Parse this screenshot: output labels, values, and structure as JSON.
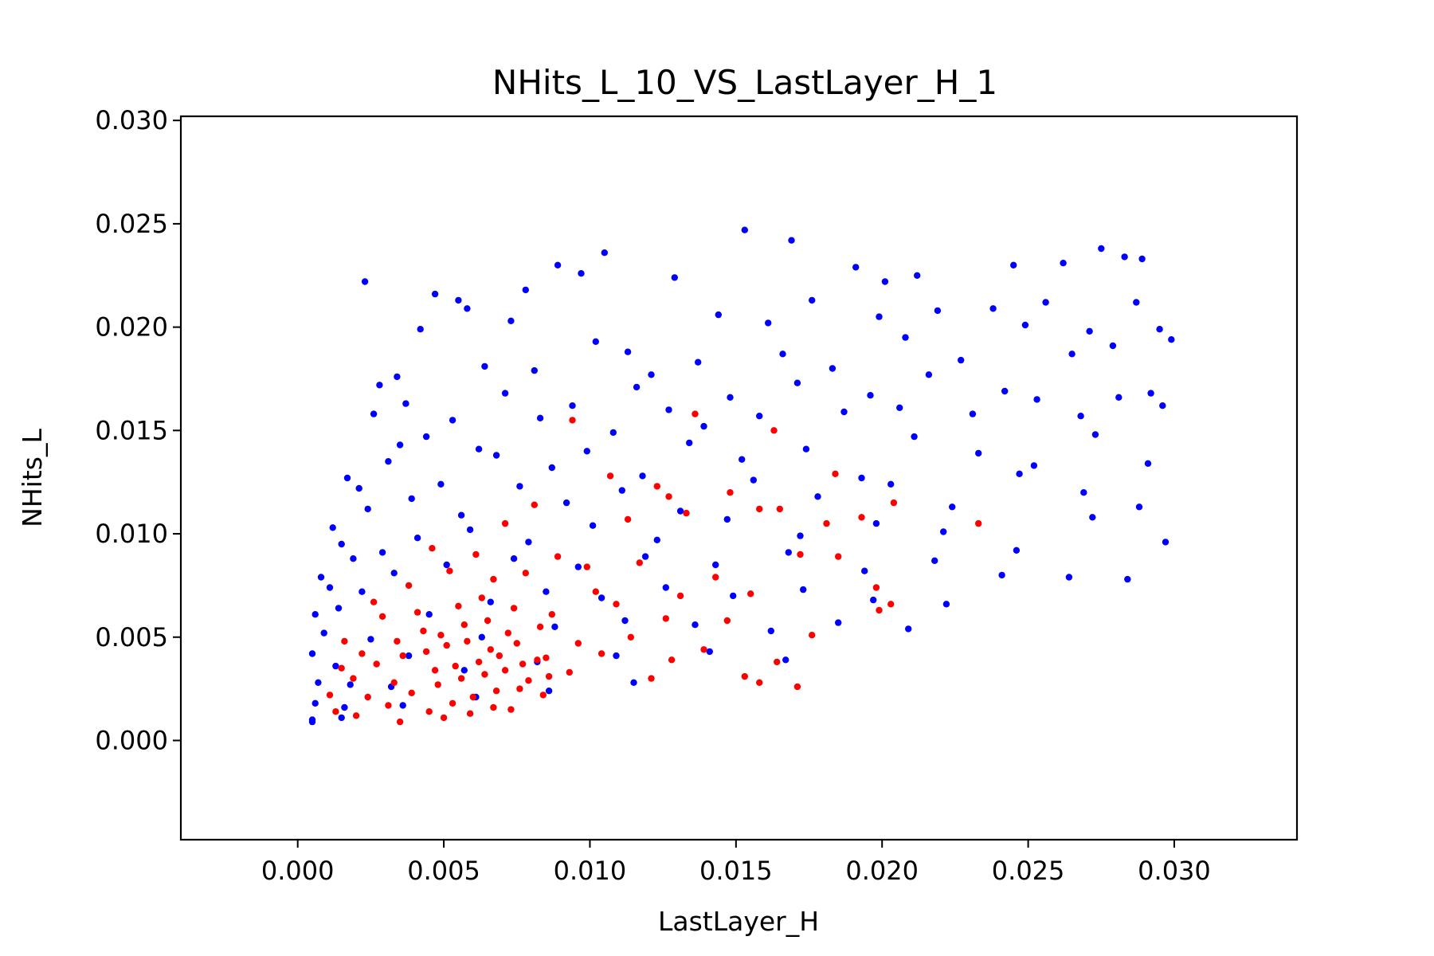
{
  "chart_data": {
    "type": "scatter",
    "title": "NHits_L_10_VS_LastLayer_H_1",
    "xlabel": "LastLayer_H",
    "ylabel": "NHits_L",
    "xlim": [
      -0.004,
      0.0342
    ],
    "ylim": [
      -0.0048,
      0.0302
    ],
    "x_ticks": [
      "0.000",
      "0.005",
      "0.010",
      "0.015",
      "0.020",
      "0.025",
      "0.030"
    ],
    "y_ticks": [
      "0.000",
      "0.005",
      "0.010",
      "0.015",
      "0.020",
      "0.025",
      "0.030"
    ],
    "grid": false,
    "legend": "none",
    "colors": {
      "series_1": "#0000ff",
      "series_2": "#ff0000"
    },
    "series": [
      {
        "color": "#0000ff",
        "x": [
          0.0023,
          0.0047,
          0.0055,
          0.0078,
          0.0089,
          0.0097,
          0.0105,
          0.0129,
          0.0153,
          0.0169,
          0.0191,
          0.0201,
          0.0212,
          0.0245,
          0.0262,
          0.0275,
          0.0283,
          0.0289,
          0.0295,
          0.0299,
          0.0034,
          0.0042,
          0.0058,
          0.0073,
          0.0102,
          0.0113,
          0.0144,
          0.0161,
          0.0176,
          0.0199,
          0.0219,
          0.0238,
          0.0256,
          0.0271,
          0.0287,
          0.0028,
          0.0037,
          0.0064,
          0.0081,
          0.0121,
          0.0137,
          0.0166,
          0.0183,
          0.0208,
          0.0227,
          0.0249,
          0.0265,
          0.0279,
          0.0292,
          0.0017,
          0.0026,
          0.0035,
          0.0044,
          0.0053,
          0.0062,
          0.0071,
          0.0083,
          0.0094,
          0.0108,
          0.0116,
          0.0127,
          0.0139,
          0.0148,
          0.0158,
          0.0171,
          0.0187,
          0.0196,
          0.0206,
          0.0216,
          0.0231,
          0.0242,
          0.0253,
          0.0268,
          0.0281,
          0.0296,
          0.0012,
          0.0021,
          0.0031,
          0.0049,
          0.0068,
          0.0087,
          0.0099,
          0.0118,
          0.0134,
          0.0152,
          0.0174,
          0.0193,
          0.0211,
          0.0233,
          0.0252,
          0.0273,
          0.0291,
          0.0008,
          0.0015,
          0.0024,
          0.0039,
          0.0056,
          0.0076,
          0.0092,
          0.0111,
          0.0131,
          0.0156,
          0.0178,
          0.0203,
          0.0224,
          0.0247,
          0.0269,
          0.0288,
          0.0006,
          0.0011,
          0.0019,
          0.0029,
          0.0041,
          0.0059,
          0.0079,
          0.0101,
          0.0123,
          0.0147,
          0.0172,
          0.0198,
          0.0221,
          0.0246,
          0.0272,
          0.0297,
          0.0005,
          0.0009,
          0.0014,
          0.0022,
          0.0033,
          0.0051,
          0.0074,
          0.0096,
          0.0119,
          0.0143,
          0.0168,
          0.0194,
          0.0218,
          0.0241,
          0.0264,
          0.0284,
          0.0007,
          0.0013,
          0.0025,
          0.0045,
          0.0066,
          0.0085,
          0.0104,
          0.0126,
          0.0149,
          0.0173,
          0.0197,
          0.0222,
          0.0006,
          0.0018,
          0.0038,
          0.0063,
          0.0088,
          0.0112,
          0.0136,
          0.0162,
          0.0185,
          0.0209,
          0.0005,
          0.0016,
          0.0032,
          0.0057,
          0.0082,
          0.0109,
          0.0141,
          0.0167,
          0.0005,
          0.0015,
          0.0036,
          0.0061,
          0.0086,
          0.0115
        ],
        "y": [
          0.0222,
          0.0216,
          0.0213,
          0.0218,
          0.023,
          0.0226,
          0.0236,
          0.0224,
          0.0247,
          0.0242,
          0.0229,
          0.0222,
          0.0225,
          0.023,
          0.0231,
          0.0238,
          0.0234,
          0.0233,
          0.0199,
          0.0194,
          0.0176,
          0.0199,
          0.0209,
          0.0203,
          0.0193,
          0.0188,
          0.0206,
          0.0202,
          0.0213,
          0.0205,
          0.0208,
          0.0209,
          0.0212,
          0.0198,
          0.0212,
          0.0172,
          0.0163,
          0.0181,
          0.0179,
          0.0177,
          0.0183,
          0.0187,
          0.018,
          0.0195,
          0.0184,
          0.0201,
          0.0187,
          0.0191,
          0.0168,
          0.0127,
          0.0158,
          0.0143,
          0.0147,
          0.0155,
          0.0141,
          0.0168,
          0.0156,
          0.0162,
          0.0149,
          0.0171,
          0.016,
          0.0152,
          0.0166,
          0.0157,
          0.0173,
          0.0159,
          0.0167,
          0.0161,
          0.0177,
          0.0158,
          0.0169,
          0.0165,
          0.0157,
          0.0166,
          0.0162,
          0.0103,
          0.0122,
          0.0135,
          0.0124,
          0.0138,
          0.0132,
          0.014,
          0.0128,
          0.0144,
          0.0136,
          0.0141,
          0.0127,
          0.0147,
          0.0139,
          0.0133,
          0.0148,
          0.0134,
          0.0079,
          0.0095,
          0.0112,
          0.0117,
          0.0109,
          0.0123,
          0.0115,
          0.0121,
          0.0111,
          0.0126,
          0.0118,
          0.0124,
          0.0113,
          0.0129,
          0.012,
          0.0113,
          0.0061,
          0.0074,
          0.0088,
          0.0091,
          0.0098,
          0.0102,
          0.0096,
          0.0104,
          0.0097,
          0.0107,
          0.0099,
          0.0105,
          0.0101,
          0.0092,
          0.0108,
          0.0096,
          0.0042,
          0.0052,
          0.0064,
          0.0072,
          0.0081,
          0.0085,
          0.0088,
          0.0084,
          0.0089,
          0.0085,
          0.0091,
          0.0082,
          0.0087,
          0.008,
          0.0079,
          0.0078,
          0.0028,
          0.0036,
          0.0049,
          0.0061,
          0.0067,
          0.0072,
          0.0069,
          0.0074,
          0.007,
          0.0073,
          0.0068,
          0.0066,
          0.0018,
          0.0027,
          0.0041,
          0.005,
          0.0055,
          0.0058,
          0.0056,
          0.0053,
          0.0057,
          0.0054,
          0.001,
          0.0016,
          0.0026,
          0.0034,
          0.0038,
          0.0041,
          0.0043,
          0.0039,
          0.0009,
          0.0011,
          0.0017,
          0.0021,
          0.0024,
          0.0028
        ]
      },
      {
        "color": "#ff0000",
        "x": [
          0.0094,
          0.0136,
          0.0163,
          0.0184,
          0.0107,
          0.0123,
          0.0148,
          0.0158,
          0.0204,
          0.0233,
          0.0113,
          0.0127,
          0.0133,
          0.0165,
          0.0181,
          0.0193,
          0.0081,
          0.0071,
          0.0046,
          0.0061,
          0.0089,
          0.0099,
          0.0117,
          0.0143,
          0.0172,
          0.0185,
          0.0198,
          0.0026,
          0.0038,
          0.0052,
          0.0067,
          0.0078,
          0.0102,
          0.0131,
          0.0155,
          0.0203,
          0.0199,
          0.0016,
          0.0029,
          0.0041,
          0.0055,
          0.0063,
          0.0074,
          0.0087,
          0.0109,
          0.0126,
          0.0147,
          0.0176,
          0.0015,
          0.0022,
          0.0034,
          0.0043,
          0.0049,
          0.0057,
          0.0065,
          0.0072,
          0.0083,
          0.0096,
          0.0114,
          0.0139,
          0.0164,
          0.0011,
          0.0019,
          0.0027,
          0.0036,
          0.0044,
          0.0051,
          0.0058,
          0.0066,
          0.0075,
          0.0085,
          0.0104,
          0.0128,
          0.0153,
          0.0171,
          0.0013,
          0.0024,
          0.0033,
          0.0047,
          0.0054,
          0.0062,
          0.0069,
          0.0077,
          0.0082,
          0.0093,
          0.0121,
          0.0158,
          0.002,
          0.0031,
          0.0039,
          0.0048,
          0.0056,
          0.0064,
          0.0071,
          0.0079,
          0.0086,
          0.0035,
          0.0045,
          0.0053,
          0.006,
          0.0068,
          0.0076,
          0.0084,
          0.005,
          0.0059,
          0.0067,
          0.0073
        ],
        "y": [
          0.0155,
          0.0158,
          0.015,
          0.0129,
          0.0128,
          0.0123,
          0.012,
          0.0112,
          0.0115,
          0.0105,
          0.0107,
          0.0118,
          0.011,
          0.0112,
          0.0105,
          0.0108,
          0.0114,
          0.0105,
          0.0093,
          0.009,
          0.0089,
          0.0084,
          0.0086,
          0.0079,
          0.009,
          0.0089,
          0.0074,
          0.0067,
          0.0075,
          0.0082,
          0.0078,
          0.0081,
          0.0072,
          0.007,
          0.0071,
          0.0066,
          0.0063,
          0.0048,
          0.006,
          0.0062,
          0.0065,
          0.0069,
          0.0064,
          0.0061,
          0.0066,
          0.0059,
          0.0058,
          0.0051,
          0.0035,
          0.0042,
          0.0048,
          0.0053,
          0.0051,
          0.0056,
          0.0058,
          0.0052,
          0.0055,
          0.0047,
          0.005,
          0.0044,
          0.0038,
          0.0022,
          0.003,
          0.0037,
          0.0041,
          0.0043,
          0.0046,
          0.0048,
          0.0044,
          0.0047,
          0.004,
          0.0042,
          0.0039,
          0.0031,
          0.0026,
          0.0014,
          0.0021,
          0.0028,
          0.0034,
          0.0036,
          0.0038,
          0.0041,
          0.0037,
          0.0039,
          0.0033,
          0.003,
          0.0028,
          0.0012,
          0.0017,
          0.0023,
          0.0027,
          0.003,
          0.0032,
          0.0034,
          0.0029,
          0.0031,
          0.0009,
          0.0014,
          0.0018,
          0.0021,
          0.0024,
          0.0025,
          0.0022,
          0.0011,
          0.0013,
          0.0016,
          0.0015
        ]
      }
    ]
  }
}
